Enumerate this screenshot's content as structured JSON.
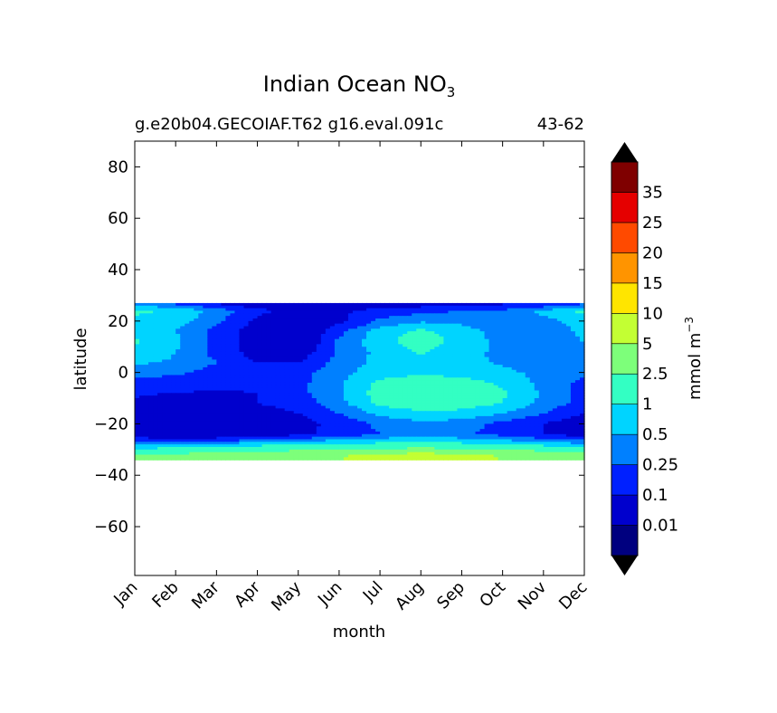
{
  "chart_data": {
    "type": "heatmap",
    "title": "Indian Ocean NO",
    "title_subscript": "3",
    "subtitle_left": "g.e20b04.GECOIAF.T62 g16.eval.091c",
    "subtitle_right": "43-62",
    "xlabel": "month",
    "ylabel": "latitude",
    "x_categories": [
      "Jan",
      "Feb",
      "Mar",
      "Apr",
      "May",
      "Jun",
      "Jul",
      "Aug",
      "Sep",
      "Oct",
      "Nov",
      "Dec"
    ],
    "y_ticks": [
      "80",
      "60",
      "40",
      "20",
      "0",
      "−20",
      "−40",
      "−60"
    ],
    "ylim": [
      -79,
      90
    ],
    "data_lat_range": [
      -34,
      27
    ],
    "colorbar": {
      "label": "mmol m",
      "label_superscript": "−3",
      "tick_labels": [
        "0.01",
        "0.1",
        "0.25",
        "0.5",
        "1",
        "2.5",
        "5",
        "10",
        "15",
        "20",
        "25",
        "35"
      ],
      "colors": [
        "#00007f",
        "#0000cd",
        "#0020ff",
        "#0080ff",
        "#00d4ff",
        "#33ffc3",
        "#7dff7a",
        "#c3ff33",
        "#ffe500",
        "#ff9400",
        "#ff4a00",
        "#e50000",
        "#7f0000"
      ],
      "extend_low_color": "#000000",
      "extend_high_color": "#000000"
    },
    "contour_levels": [
      0,
      0.01,
      0.1,
      0.25,
      0.5,
      1,
      2.5,
      5,
      10
    ],
    "field_model": {
      "description_free": true,
      "lat_rows": [
        27,
        24,
        20,
        16,
        12,
        8,
        4,
        0,
        -4,
        -8,
        -12,
        -16,
        -20,
        -24,
        -26,
        -28,
        -30,
        -32,
        -34
      ],
      "values": [
        [
          0.3,
          0.2,
          0.08,
          0.04,
          0.02,
          0.03,
          0.04,
          0.05,
          0.06,
          0.08,
          0.1,
          0.2
        ],
        [
          1.2,
          0.9,
          0.4,
          0.15,
          0.06,
          0.08,
          0.15,
          0.2,
          0.25,
          0.3,
          0.6,
          1.2
        ],
        [
          0.8,
          0.7,
          0.3,
          0.08,
          0.02,
          0.08,
          0.3,
          0.45,
          0.4,
          0.3,
          0.4,
          0.7
        ],
        [
          0.7,
          0.5,
          0.2,
          0.06,
          0.03,
          0.2,
          0.7,
          1.2,
          0.7,
          0.35,
          0.3,
          0.6
        ],
        [
          1.1,
          0.6,
          0.2,
          0.05,
          0.03,
          0.3,
          0.8,
          1.4,
          0.8,
          0.4,
          0.35,
          0.5
        ],
        [
          0.9,
          0.5,
          0.2,
          0.06,
          0.05,
          0.3,
          0.6,
          1.1,
          0.7,
          0.4,
          0.3,
          0.4
        ],
        [
          0.6,
          0.45,
          0.25,
          0.1,
          0.1,
          0.35,
          0.6,
          0.8,
          0.6,
          0.45,
          0.35,
          0.35
        ],
        [
          0.3,
          0.28,
          0.2,
          0.18,
          0.2,
          0.4,
          0.7,
          0.9,
          0.8,
          0.6,
          0.4,
          0.3
        ],
        [
          0.2,
          0.2,
          0.2,
          0.15,
          0.2,
          0.45,
          1.2,
          1.4,
          1.3,
          0.9,
          0.4,
          0.2
        ],
        [
          0.12,
          0.1,
          0.08,
          0.1,
          0.2,
          0.45,
          1.4,
          1.6,
          1.5,
          1.1,
          0.45,
          0.2
        ],
        [
          0.08,
          0.05,
          0.05,
          0.1,
          0.15,
          0.4,
          1.2,
          1.5,
          1.4,
          1.0,
          0.4,
          0.2
        ],
        [
          0.05,
          0.04,
          0.04,
          0.06,
          0.1,
          0.25,
          0.6,
          0.9,
          0.8,
          0.5,
          0.25,
          0.1
        ],
        [
          0.04,
          0.03,
          0.03,
          0.04,
          0.06,
          0.15,
          0.3,
          0.4,
          0.35,
          0.2,
          0.1,
          0.05
        ],
        [
          0.04,
          0.03,
          0.03,
          0.05,
          0.08,
          0.15,
          0.25,
          0.3,
          0.28,
          0.2,
          0.1,
          0.06
        ],
        [
          0.15,
          0.12,
          0.15,
          0.2,
          0.3,
          0.45,
          0.6,
          0.7,
          0.6,
          0.45,
          0.3,
          0.2
        ],
        [
          0.5,
          0.5,
          0.6,
          0.8,
          0.9,
          1.1,
          1.2,
          1.3,
          1.2,
          1.0,
          0.8,
          0.6
        ],
        [
          1.2,
          1.3,
          1.5,
          1.8,
          2.2,
          2.8,
          3.0,
          3.2,
          3.0,
          2.6,
          2.0,
          1.5
        ],
        [
          2.8,
          3.0,
          3.2,
          3.6,
          4.2,
          4.8,
          5.5,
          6.0,
          5.6,
          4.8,
          3.8,
          3.2
        ],
        [
          3.0,
          3.2,
          3.5,
          4.0,
          4.5,
          5.0,
          5.5,
          6.0,
          5.5,
          5.0,
          4.0,
          3.5
        ]
      ]
    }
  }
}
